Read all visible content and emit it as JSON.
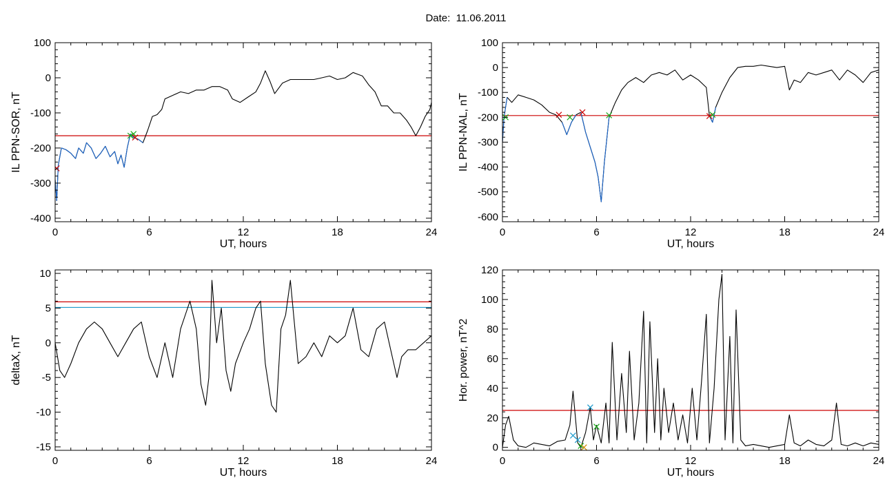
{
  "title": "Date:  11.06.2011",
  "chart_data": [
    {
      "type": "line",
      "ylabel": "IL PPN-SOR, nT",
      "xlabel": "UT, hours",
      "xlim": [
        0,
        24
      ],
      "ylim": [
        -410,
        100
      ],
      "xticks": [
        0,
        6,
        12,
        18,
        24
      ],
      "yticks": [
        -400,
        -300,
        -200,
        -100,
        0,
        100
      ],
      "threshold": {
        "y": -165,
        "color": "#cc0000"
      },
      "series": [
        {
          "color": "#000000",
          "x": [
            0,
            0.1,
            0.2,
            0.4,
            0.7,
            1.0,
            1.3,
            1.5,
            1.8,
            2.0,
            2.3,
            2.6,
            2.9,
            3.2,
            3.5,
            3.8,
            4.0,
            4.2,
            4.4,
            4.6,
            4.8,
            5.0,
            5.3,
            5.6,
            5.9,
            6.2,
            6.5,
            6.8,
            7.0,
            7.5,
            8.0,
            8.5,
            9.0,
            9.5,
            10.0,
            10.5,
            11.0,
            11.3,
            11.8,
            12.3,
            12.8,
            13.1,
            13.4,
            13.7,
            14.0,
            14.5,
            15.0,
            15.5,
            16.0,
            16.5,
            17.0,
            17.5,
            18.0,
            18.5,
            19.0,
            19.3,
            19.6,
            20.0,
            20.4,
            20.8,
            21.2,
            21.6,
            22.0,
            22.4,
            22.7,
            23.0,
            23.3,
            23.6,
            23.9,
            24.0
          ],
          "y": [
            -290,
            -350,
            -250,
            -200,
            -205,
            -215,
            -230,
            -200,
            -215,
            -185,
            -200,
            -230,
            -215,
            -195,
            -225,
            -210,
            -245,
            -220,
            -255,
            -200,
            -160,
            -170,
            -175,
            -185,
            -150,
            -110,
            -105,
            -90,
            -60,
            -50,
            -40,
            -45,
            -35,
            -35,
            -25,
            -25,
            -35,
            -60,
            -70,
            -55,
            -40,
            -15,
            20,
            -10,
            -45,
            -15,
            -5,
            -5,
            -5,
            -5,
            0,
            5,
            -5,
            0,
            15,
            10,
            5,
            -20,
            -40,
            -80,
            -80,
            -100,
            -100,
            -120,
            -140,
            -165,
            -140,
            -110,
            -90,
            -70
          ]
        },
        {
          "color": "#1a66cc",
          "x": [
            0,
            0.1,
            0.2,
            0.4,
            0.7,
            1.0,
            1.3,
            1.5,
            1.8,
            2.0,
            2.3,
            2.6,
            2.9,
            3.2,
            3.5,
            3.8,
            4.0,
            4.2,
            4.4,
            4.6,
            4.8,
            5.0,
            5.3,
            5.6
          ],
          "y": [
            -290,
            -350,
            -250,
            -200,
            -205,
            -215,
            -230,
            -200,
            -215,
            -185,
            -200,
            -230,
            -215,
            -195,
            -225,
            -210,
            -245,
            -220,
            -255,
            -200,
            -160,
            -170,
            -175,
            -185
          ]
        }
      ],
      "markers": [
        {
          "x": 4.8,
          "y": -165,
          "color": "#1aaa1a"
        },
        {
          "x": 5.0,
          "y": -160,
          "color": "#1aaa1a"
        },
        {
          "x": 5.1,
          "y": -170,
          "color": "#cc0000"
        },
        {
          "x": 0.1,
          "y": -258,
          "color": "#cc0000"
        }
      ]
    },
    {
      "type": "line",
      "ylabel": "IL PPN-NAL, nT",
      "xlabel": "UT, hours",
      "xlim": [
        0,
        24
      ],
      "ylim": [
        -620,
        100
      ],
      "xticks": [
        0,
        6,
        12,
        18,
        24
      ],
      "yticks": [
        -600,
        -500,
        -400,
        -300,
        -200,
        -100,
        0,
        100
      ],
      "threshold": {
        "y": -193,
        "color": "#cc0000"
      },
      "series": [
        {
          "color": "#000000",
          "x": [
            0,
            0.1,
            0.3,
            0.6,
            1.0,
            1.5,
            2.0,
            2.5,
            3.0,
            3.4,
            3.8,
            4.1,
            4.4,
            4.7,
            5.0,
            5.3,
            5.6,
            5.9,
            6.1,
            6.3,
            6.5,
            6.8,
            7.2,
            7.6,
            8.0,
            8.5,
            9.0,
            9.5,
            10.0,
            10.5,
            11.0,
            11.5,
            12.0,
            12.5,
            13.0,
            13.2,
            13.4,
            13.6,
            14.0,
            14.5,
            15.0,
            15.5,
            16.0,
            16.5,
            17.0,
            17.5,
            18.0,
            18.3,
            18.6,
            19.0,
            19.5,
            20.0,
            20.5,
            21.0,
            21.5,
            22.0,
            22.5,
            23.0,
            23.5,
            24.0
          ],
          "y": [
            -300,
            -200,
            -120,
            -140,
            -110,
            -120,
            -130,
            -150,
            -180,
            -190,
            -220,
            -270,
            -220,
            -190,
            -180,
            -260,
            -320,
            -380,
            -440,
            -540,
            -380,
            -200,
            -140,
            -90,
            -60,
            -40,
            -60,
            -30,
            -20,
            -30,
            -10,
            -50,
            -30,
            -50,
            -80,
            -195,
            -220,
            -160,
            -100,
            -40,
            0,
            5,
            5,
            10,
            5,
            0,
            5,
            -90,
            -50,
            -60,
            -20,
            -30,
            -20,
            -10,
            -50,
            -10,
            -30,
            -60,
            -20,
            -10
          ]
        },
        {
          "color": "#1a66cc",
          "x": [
            0,
            0.1,
            0.3
          ],
          "y": [
            -300,
            -200,
            -120
          ]
        },
        {
          "color": "#1a66cc",
          "x": [
            3.8,
            4.1,
            4.4,
            4.7
          ],
          "y": [
            -220,
            -270,
            -220,
            -190
          ]
        },
        {
          "color": "#1a66cc",
          "x": [
            5.0,
            5.3,
            5.6,
            5.9,
            6.1,
            6.3,
            6.5,
            6.8
          ],
          "y": [
            -180,
            -260,
            -320,
            -380,
            -440,
            -540,
            -380,
            -200
          ]
        },
        {
          "color": "#1a66cc",
          "x": [
            13.2,
            13.4,
            13.6
          ],
          "y": [
            -195,
            -220,
            -160
          ]
        }
      ],
      "markers": [
        {
          "x": 0.2,
          "y": -200,
          "color": "#1aaa1a"
        },
        {
          "x": 3.6,
          "y": -190,
          "color": "#cc0000"
        },
        {
          "x": 4.3,
          "y": -200,
          "color": "#1aaa1a"
        },
        {
          "x": 5.1,
          "y": -180,
          "color": "#cc0000"
        },
        {
          "x": 6.8,
          "y": -192,
          "color": "#1aaa1a"
        },
        {
          "x": 13.2,
          "y": -195,
          "color": "#cc0000"
        },
        {
          "x": 13.4,
          "y": -190,
          "color": "#1aaa1a"
        }
      ]
    },
    {
      "type": "line",
      "ylabel": "deltaX, nT",
      "xlabel": "UT, hours",
      "xlim": [
        0,
        24
      ],
      "ylim": [
        -15.5,
        10.5
      ],
      "xticks": [
        0,
        6,
        12,
        18,
        24
      ],
      "yticks": [
        -15,
        -10,
        -5,
        0,
        5,
        10
      ],
      "thresholds": [
        {
          "y": 5.9,
          "color": "#cc0000"
        },
        {
          "y": 5.1,
          "color": "#1a99cc"
        }
      ],
      "series": [
        {
          "color": "#000000",
          "x": [
            0,
            0.3,
            0.6,
            1.0,
            1.5,
            2.0,
            2.5,
            3.0,
            3.5,
            4.0,
            4.5,
            5.0,
            5.5,
            6.0,
            6.5,
            7.0,
            7.5,
            8.0,
            8.3,
            8.6,
            9.0,
            9.3,
            9.6,
            9.8,
            10.0,
            10.3,
            10.6,
            10.9,
            11.2,
            11.5,
            12.0,
            12.4,
            12.8,
            13.1,
            13.4,
            13.8,
            14.1,
            14.4,
            14.7,
            15.0,
            15.5,
            16.0,
            16.5,
            17.0,
            17.5,
            18.0,
            18.5,
            19.0,
            19.5,
            20.0,
            20.5,
            21.0,
            21.5,
            21.8,
            22.1,
            22.5,
            23.0,
            23.5,
            24.0
          ],
          "y": [
            0,
            -4,
            -5,
            -3,
            0,
            2,
            3,
            2,
            0,
            -2,
            0,
            2,
            3,
            -2,
            -5,
            0,
            -5,
            2,
            4,
            6,
            2,
            -6,
            -9,
            -5,
            9,
            0,
            5,
            -4,
            -7,
            -3,
            0,
            2,
            5,
            6,
            -3,
            -9,
            -10,
            2,
            4,
            9,
            -3,
            -2,
            0,
            -2,
            1,
            0,
            1,
            5,
            -1,
            -2,
            2,
            3,
            -2,
            -5,
            -2,
            -1,
            -1,
            0,
            1
          ]
        }
      ]
    },
    {
      "type": "line",
      "ylabel": "Hor. power, nT^2",
      "xlabel": "UT, hours",
      "xlim": [
        0,
        24
      ],
      "ylim": [
        -2,
        120
      ],
      "xticks": [
        0,
        6,
        12,
        18,
        24
      ],
      "yticks": [
        0,
        20,
        40,
        60,
        80,
        100,
        120
      ],
      "threshold": {
        "y": 25,
        "color": "#cc0000"
      },
      "series": [
        {
          "color": "#000000",
          "x": [
            0,
            0.2,
            0.4,
            0.7,
            1.0,
            1.5,
            2.0,
            2.5,
            3.0,
            3.5,
            4.0,
            4.3,
            4.5,
            4.8,
            5.0,
            5.3,
            5.6,
            5.8,
            6.0,
            6.3,
            6.6,
            6.8,
            7.0,
            7.3,
            7.6,
            7.9,
            8.1,
            8.4,
            8.7,
            9.0,
            9.2,
            9.4,
            9.7,
            9.9,
            10.1,
            10.3,
            10.6,
            10.9,
            11.2,
            11.5,
            11.8,
            12.1,
            12.4,
            12.7,
            13.0,
            13.2,
            13.5,
            13.8,
            14.0,
            14.2,
            14.5,
            14.7,
            14.9,
            15.2,
            15.5,
            16.0,
            16.5,
            17.0,
            17.5,
            18.0,
            18.3,
            18.6,
            19.0,
            19.5,
            20.0,
            20.5,
            21.0,
            21.3,
            21.6,
            22.0,
            22.5,
            23.0,
            23.5,
            24.0
          ],
          "y": [
            0,
            15,
            21,
            5,
            1,
            0,
            3,
            2,
            1,
            4,
            5,
            15,
            38,
            3,
            0,
            10,
            27,
            5,
            15,
            3,
            30,
            3,
            71,
            5,
            50,
            10,
            65,
            5,
            30,
            92,
            3,
            85,
            10,
            60,
            5,
            40,
            10,
            30,
            5,
            22,
            3,
            40,
            5,
            45,
            90,
            3,
            40,
            100,
            117,
            5,
            75,
            3,
            93,
            5,
            1,
            2,
            1,
            0,
            1,
            2,
            22,
            3,
            1,
            5,
            2,
            1,
            5,
            30,
            2,
            1,
            3,
            1,
            3,
            2
          ]
        }
      ],
      "markers": [
        {
          "x": 4.5,
          "y": 8,
          "color": "#1a99cc"
        },
        {
          "x": 4.8,
          "y": 5,
          "color": "#1a99cc"
        },
        {
          "x": 5.0,
          "y": 1,
          "color": "#1aaa1a"
        },
        {
          "x": 5.2,
          "y": 0,
          "color": "#cc8800"
        },
        {
          "x": 5.6,
          "y": 27,
          "color": "#1a99cc"
        },
        {
          "x": 6.0,
          "y": 14,
          "color": "#1aaa1a"
        }
      ]
    }
  ]
}
